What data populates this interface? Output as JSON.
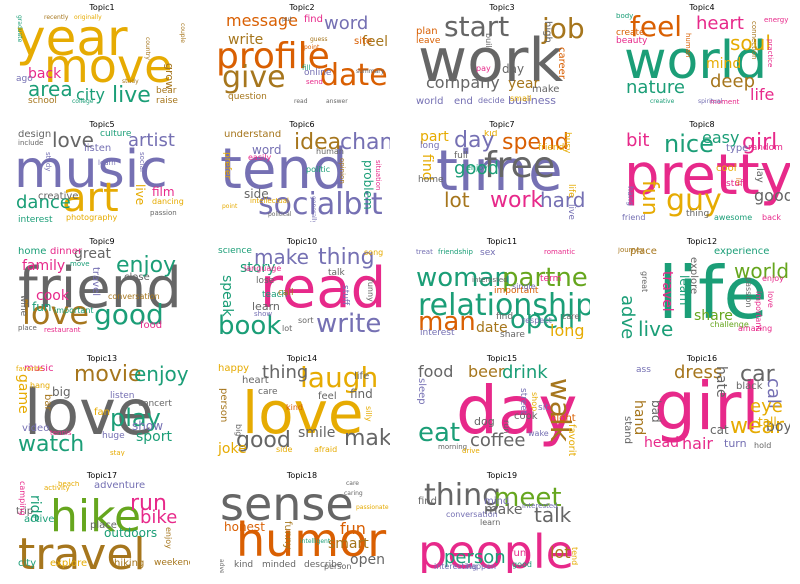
{
  "colors": {
    "orange": "#d95f02",
    "purple": "#7570b3",
    "pink": "#e7298a",
    "green": "#66a61e",
    "teal": "#1b9e77",
    "gold": "#e6ab02",
    "brown": "#a6761d",
    "gray": "#666666"
  },
  "chart_data": {
    "type": "wordcloud",
    "topics": [
      {
        "title": "Topic1",
        "words": [
          "year",
          "move",
          "live",
          "area",
          "city",
          "back",
          "grow",
          "school",
          "bear",
          "raise",
          "ago",
          "college",
          "study",
          "graduate",
          "recently",
          "originally",
          "country",
          "couple"
        ]
      },
      {
        "title": "Topic2",
        "words": [
          "profile",
          "date",
          "give",
          "word",
          "message",
          "write",
          "feel",
          "find",
          "site",
          "question",
          "online",
          "fill",
          "send",
          "put",
          "guess",
          "point",
          "answer",
          "read",
          "summary"
        ]
      },
      {
        "title": "Topic3",
        "words": [
          "work",
          "start",
          "job",
          "company",
          "year",
          "day",
          "business",
          "make",
          "world",
          "end",
          "plan",
          "leave",
          "decide",
          "career",
          "high",
          "build",
          "pay",
          "small"
        ]
      },
      {
        "title": "Topic4",
        "words": [
          "world",
          "feel",
          "heart",
          "soul",
          "nature",
          "deep",
          "life",
          "mind",
          "beauty",
          "create",
          "body",
          "energy",
          "moment",
          "creative",
          "spiritual",
          "connection",
          "practice",
          "human"
        ]
      },
      {
        "title": "Topic5",
        "words": [
          "music",
          "art",
          "love",
          "artist",
          "dance",
          "design",
          "culture",
          "listen",
          "creative",
          "film",
          "interest",
          "photography",
          "include",
          "learn",
          "study",
          "social",
          "dancing",
          "passion",
          "live"
        ]
      },
      {
        "title": "Topic6",
        "words": [
          "tend",
          "socialbit",
          "idea",
          "change",
          "word",
          "understand",
          "side",
          "prefer",
          "problem",
          "politic",
          "human",
          "easily",
          "intellectual",
          "point",
          "opinion",
          "generally",
          "political",
          "situation"
        ]
      },
      {
        "title": "Topic7",
        "words": [
          "time",
          "free",
          "work",
          "spend",
          "day",
          "good",
          "lot",
          "hard",
          "find",
          "part",
          "long",
          "full",
          "enjoy",
          "kid",
          "friend",
          "busy",
          "life",
          "home",
          "live"
        ]
      },
      {
        "title": "Topic8",
        "words": [
          "pretty",
          "guy",
          "fun",
          "nice",
          "girl",
          "bit",
          "easy",
          "good",
          "cool",
          "type",
          "random",
          "lay",
          "stuff",
          "friend",
          "thing",
          "awesome",
          "back",
          "hang",
          "lol"
        ]
      },
      {
        "title": "Topic9",
        "words": [
          "friend",
          "love",
          "good",
          "enjoy",
          "family",
          "great",
          "cook",
          "fun",
          "food",
          "home",
          "dinner",
          "travel",
          "close",
          "wine",
          "important",
          "conversation",
          "restaurant",
          "place",
          "move"
        ]
      },
      {
        "title": "Topic10",
        "words": [
          "read",
          "book",
          "write",
          "make",
          "thing",
          "story",
          "speak",
          "learn",
          "language",
          "science",
          "talk",
          "song",
          "lose",
          "teach",
          "show",
          "call",
          "sort",
          "lot",
          "stuff",
          "funny"
        ]
      },
      {
        "title": "Topic11",
        "words": [
          "relationship",
          "woman",
          "partner",
          "man",
          "open",
          "long",
          "date",
          "interest",
          "share",
          "sex",
          "term",
          "important",
          "single",
          "find",
          "respect",
          "care",
          "treat",
          "friendship",
          "romantic",
          "interested"
        ]
      },
      {
        "title": "Topic12",
        "words": [
          "life",
          "live",
          "world",
          "travel",
          "learn",
          "share",
          "experience",
          "explore",
          "adventure",
          "place",
          "enjoy",
          "passion",
          "great",
          "challenge",
          "amazing",
          "love",
          "important",
          "journey"
        ]
      },
      {
        "title": "Topic13",
        "words": [
          "love",
          "watch",
          "play",
          "movie",
          "enjoy",
          "game",
          "sport",
          "show",
          "big",
          "music",
          "video",
          "fan",
          "bar",
          "listen",
          "concert",
          "huge",
          "favorite",
          "tennis",
          "hang",
          "stay"
        ]
      },
      {
        "title": "Topic14",
        "words": [
          "love",
          "make",
          "laugh",
          "good",
          "thing",
          "smile",
          "joke",
          "heart",
          "happy",
          "care",
          "feel",
          "find",
          "life",
          "person",
          "big",
          "side",
          "afraid",
          "silly",
          "kind"
        ]
      },
      {
        "title": "Topic15",
        "words": [
          "day",
          "eat",
          "walk",
          "coffee",
          "food",
          "beer",
          "drink",
          "sleep",
          "cook",
          "dog",
          "night",
          "favorite",
          "shop",
          "street",
          "morning",
          "drive",
          "run",
          "sit",
          "wake"
        ]
      },
      {
        "title": "Topic16",
        "words": [
          "girl",
          "car",
          "wear",
          "hair",
          "boy",
          "dress",
          "call",
          "eye",
          "tall",
          "hate",
          "head",
          "cat",
          "hand",
          "black",
          "bad",
          "turn",
          "hold",
          "stand",
          "ass"
        ]
      },
      {
        "title": "Topic17",
        "words": [
          "travel",
          "hike",
          "run",
          "bike",
          "outdoors",
          "adventure",
          "ride",
          "trip",
          "active",
          "place",
          "explore",
          "camping",
          "city",
          "hiking",
          "weekend",
          "enjoy",
          "beach",
          "activity"
        ]
      },
      {
        "title": "Topic18",
        "words": [
          "sense",
          "humor",
          "fun",
          "smart",
          "open",
          "kind",
          "honest",
          "minded",
          "describe",
          "funny",
          "person",
          "intelligent",
          "care",
          "caring",
          "passionate",
          "adventurous"
        ]
      },
      {
        "title": "Topic19",
        "words": [
          "people",
          "thing",
          "meet",
          "talk",
          "make",
          "person",
          "lot",
          "find",
          "fun",
          "mind",
          "interested",
          "conversation",
          "learn",
          "interesting",
          "happen",
          "good",
          "tend"
        ]
      }
    ]
  }
}
